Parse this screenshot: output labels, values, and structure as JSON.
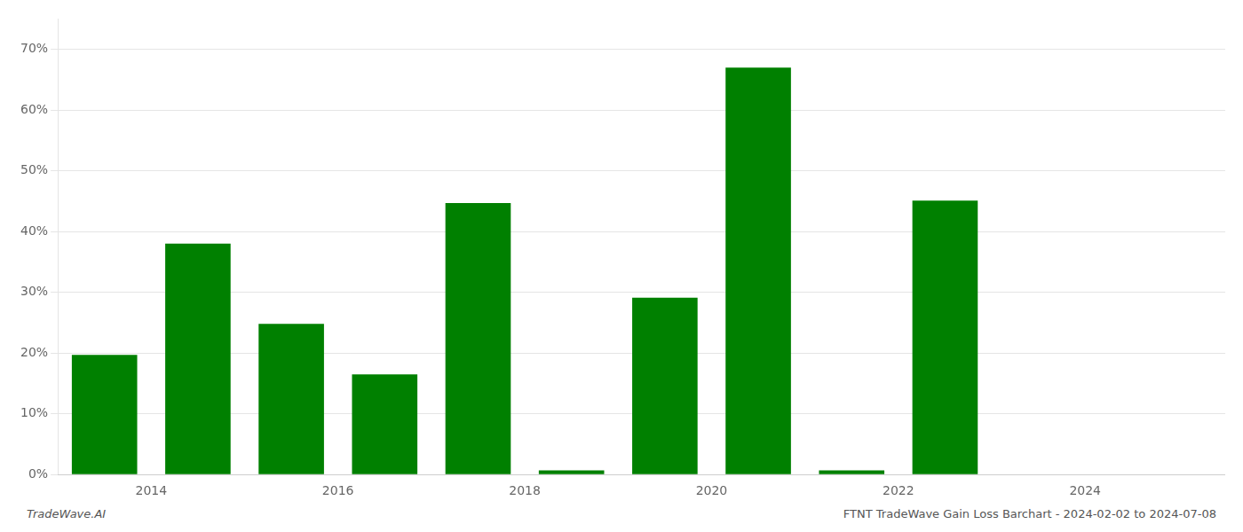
{
  "chart_data": {
    "type": "bar",
    "x": [
      2013,
      2014,
      2015,
      2016,
      2017,
      2018,
      2019,
      2020,
      2021,
      2022,
      2023,
      2024
    ],
    "values": [
      0.197,
      0.38,
      0.248,
      0.165,
      0.447,
      0.007,
      0.291,
      0.67,
      0.007,
      0.451,
      0.0,
      0.0
    ],
    "color": "#008000",
    "xlim": [
      2012.5,
      2025.0
    ],
    "xticks": [
      {
        "value": 2013.5,
        "label": "2014"
      },
      {
        "value": 2015.5,
        "label": "2016"
      },
      {
        "value": 2017.5,
        "label": "2018"
      },
      {
        "value": 2019.5,
        "label": "2020"
      },
      {
        "value": 2021.5,
        "label": "2022"
      },
      {
        "value": 2023.5,
        "label": "2024"
      }
    ],
    "ylim": [
      0,
      0.75
    ],
    "yticks": [
      {
        "value": 0.0,
        "label": "0%"
      },
      {
        "value": 0.1,
        "label": "10%"
      },
      {
        "value": 0.2,
        "label": "20%"
      },
      {
        "value": 0.3,
        "label": "30%"
      },
      {
        "value": 0.4,
        "label": "40%"
      },
      {
        "value": 0.5,
        "label": "50%"
      },
      {
        "value": 0.6,
        "label": "60%"
      },
      {
        "value": 0.7,
        "label": "70%"
      }
    ],
    "grid": "y",
    "annotations": [
      "TradeWave.AI",
      "FTNT TradeWave Gain Loss Barchart - 2024-02-02 to 2024-07-08"
    ]
  }
}
